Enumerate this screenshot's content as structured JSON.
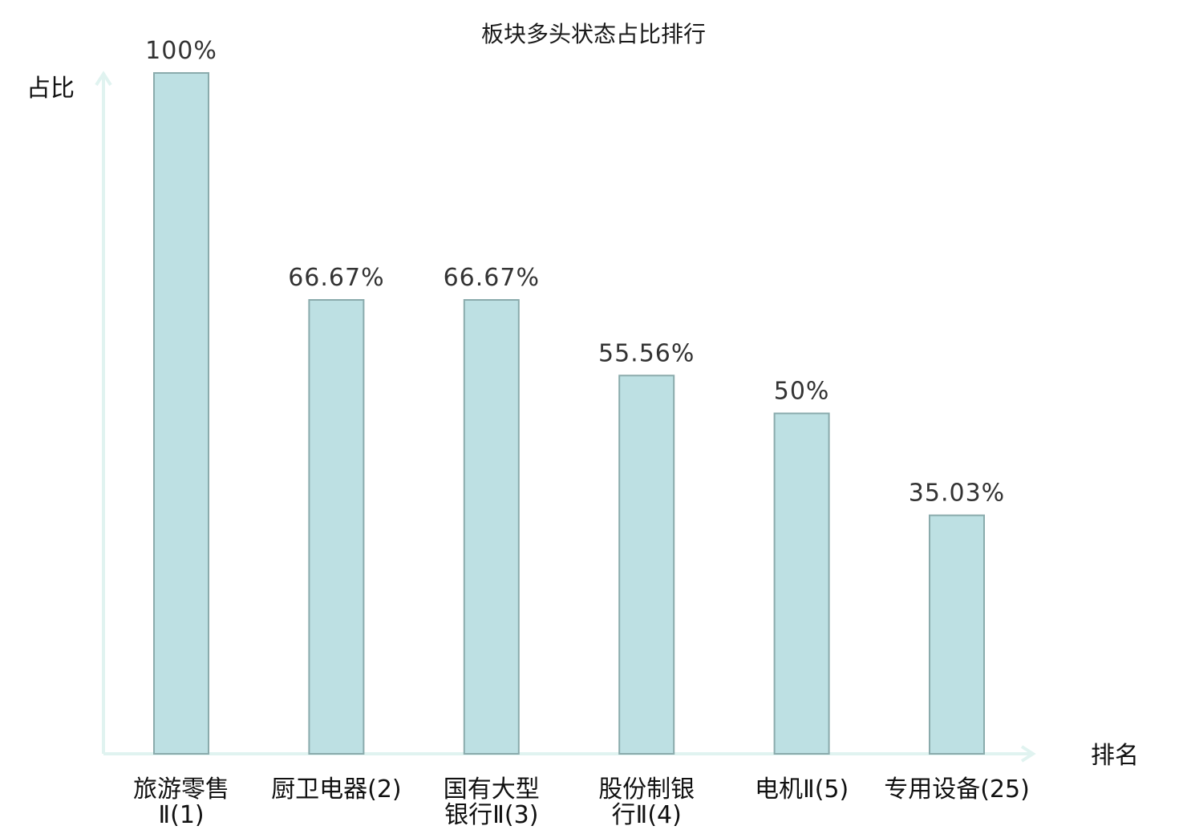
{
  "chart_data": {
    "type": "bar",
    "title": "板块多头状态占比排行",
    "xlabel": "排名",
    "ylabel": "占比",
    "ylim": [
      0,
      100
    ],
    "grid": false,
    "categories": [
      {
        "lines": [
          "旅游零售",
          "Ⅱ(1)"
        ],
        "highlight": false
      },
      {
        "lines": [
          "厨卫电器(2)"
        ],
        "highlight": false
      },
      {
        "lines": [
          "国有大型",
          "银行Ⅱ(3)"
        ],
        "highlight": false
      },
      {
        "lines": [
          "股份制银",
          "行Ⅱ(4)"
        ],
        "highlight": false
      },
      {
        "lines": [
          "电机Ⅱ(5)"
        ],
        "highlight": false
      },
      {
        "lines": [
          "专用设备(25)"
        ],
        "highlight": true
      }
    ],
    "values": [
      100,
      66.67,
      66.67,
      55.56,
      50,
      35.03
    ],
    "value_labels": [
      "100%",
      "66.67%",
      "66.67%",
      "55.56%",
      "50%",
      "35.03%"
    ],
    "colors": {
      "bar_fill": "#bde0e3",
      "bar_stroke": "#8aabac",
      "axis": "#e0f3f0",
      "highlight_label": "#e8262b",
      "label": "#111111",
      "value_label": "#333333"
    }
  }
}
